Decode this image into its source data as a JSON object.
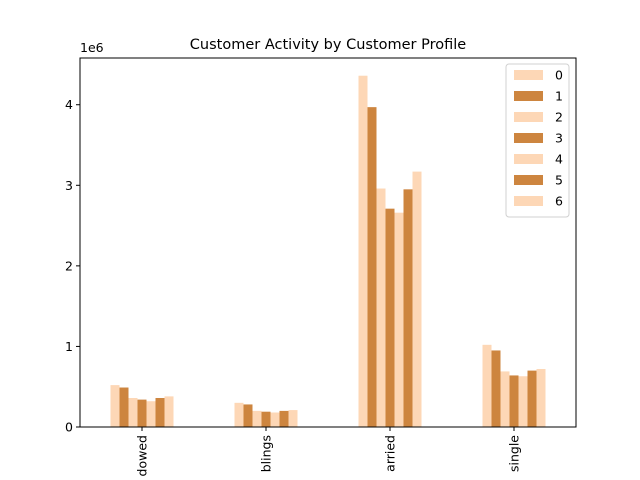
{
  "chart_data": {
    "type": "bar",
    "title": "Customer Activity by Customer Profile",
    "xlabel": "",
    "ylabel": "",
    "y_offset_label": "1e6",
    "categories": [
      "dowed",
      "blings",
      "arried",
      "single"
    ],
    "yticks": [
      0,
      1,
      2,
      3,
      4
    ],
    "ylim": [
      0,
      4580000
    ],
    "legend_position": "top-right",
    "colors": [
      "#fdd7b6",
      "#cd853f"
    ],
    "series": [
      {
        "name": "0",
        "values": [
          520000,
          300000,
          4360000,
          1020000
        ]
      },
      {
        "name": "1",
        "values": [
          490000,
          280000,
          3970000,
          950000
        ]
      },
      {
        "name": "2",
        "values": [
          360000,
          200000,
          2960000,
          690000
        ]
      },
      {
        "name": "3",
        "values": [
          340000,
          190000,
          2710000,
          640000
        ]
      },
      {
        "name": "4",
        "values": [
          320000,
          180000,
          2660000,
          630000
        ]
      },
      {
        "name": "5",
        "values": [
          360000,
          200000,
          2950000,
          700000
        ]
      },
      {
        "name": "6",
        "values": [
          380000,
          210000,
          3170000,
          720000
        ]
      }
    ]
  }
}
